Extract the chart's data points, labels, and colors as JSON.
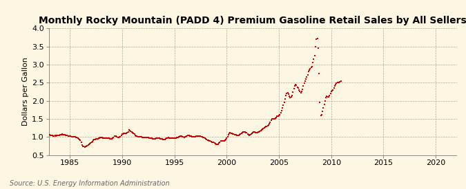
{
  "title": "Monthly Rocky Mountain (PADD 4) Premium Gasoline Retail Sales by All Sellers",
  "ylabel": "Dollars per Gallon",
  "source": "Source: U.S. Energy Information Administration",
  "xlim": [
    1983,
    2022
  ],
  "ylim": [
    0.5,
    4.0
  ],
  "yticks": [
    0.5,
    1.0,
    1.5,
    2.0,
    2.5,
    3.0,
    3.5,
    4.0
  ],
  "xticks": [
    1985,
    1990,
    1995,
    2000,
    2005,
    2010,
    2015,
    2020
  ],
  "dot_color": "#cc0000",
  "bg_color": "#fdf6e3",
  "title_fontsize": 10,
  "label_fontsize": 8,
  "tick_fontsize": 8,
  "source_fontsize": 7,
  "data_points": [
    [
      1983.08,
      1.06
    ],
    [
      1983.17,
      1.04
    ],
    [
      1983.25,
      1.05
    ],
    [
      1983.33,
      1.04
    ],
    [
      1983.42,
      1.03
    ],
    [
      1983.5,
      1.03
    ],
    [
      1983.58,
      1.04
    ],
    [
      1983.67,
      1.03
    ],
    [
      1983.75,
      1.04
    ],
    [
      1983.83,
      1.04
    ],
    [
      1983.92,
      1.05
    ],
    [
      1984.0,
      1.05
    ],
    [
      1984.08,
      1.06
    ],
    [
      1984.17,
      1.06
    ],
    [
      1984.25,
      1.07
    ],
    [
      1984.33,
      1.06
    ],
    [
      1984.42,
      1.06
    ],
    [
      1984.5,
      1.06
    ],
    [
      1984.58,
      1.05
    ],
    [
      1984.67,
      1.04
    ],
    [
      1984.75,
      1.04
    ],
    [
      1984.83,
      1.03
    ],
    [
      1984.92,
      1.02
    ],
    [
      1985.0,
      1.02
    ],
    [
      1985.08,
      1.02
    ],
    [
      1985.17,
      1.01
    ],
    [
      1985.25,
      1.01
    ],
    [
      1985.33,
      1.0
    ],
    [
      1985.42,
      1.0
    ],
    [
      1985.5,
      1.0
    ],
    [
      1985.58,
      0.99
    ],
    [
      1985.67,
      0.98
    ],
    [
      1985.75,
      0.97
    ],
    [
      1985.83,
      0.95
    ],
    [
      1985.92,
      0.93
    ],
    [
      1986.0,
      0.9
    ],
    [
      1986.08,
      0.85
    ],
    [
      1986.17,
      0.78
    ],
    [
      1986.25,
      0.74
    ],
    [
      1986.33,
      0.73
    ],
    [
      1986.42,
      0.72
    ],
    [
      1986.5,
      0.73
    ],
    [
      1986.58,
      0.74
    ],
    [
      1986.67,
      0.76
    ],
    [
      1986.75,
      0.78
    ],
    [
      1986.83,
      0.8
    ],
    [
      1986.92,
      0.82
    ],
    [
      1987.0,
      0.84
    ],
    [
      1987.08,
      0.85
    ],
    [
      1987.17,
      0.87
    ],
    [
      1987.25,
      0.9
    ],
    [
      1987.33,
      0.92
    ],
    [
      1987.42,
      0.93
    ],
    [
      1987.5,
      0.94
    ],
    [
      1987.58,
      0.95
    ],
    [
      1987.67,
      0.95
    ],
    [
      1987.75,
      0.96
    ],
    [
      1987.83,
      0.97
    ],
    [
      1987.92,
      0.98
    ],
    [
      1988.0,
      0.98
    ],
    [
      1988.08,
      0.98
    ],
    [
      1988.17,
      0.97
    ],
    [
      1988.25,
      0.97
    ],
    [
      1988.33,
      0.97
    ],
    [
      1988.42,
      0.97
    ],
    [
      1988.5,
      0.97
    ],
    [
      1988.58,
      0.96
    ],
    [
      1988.67,
      0.96
    ],
    [
      1988.75,
      0.96
    ],
    [
      1988.83,
      0.95
    ],
    [
      1988.92,
      0.94
    ],
    [
      1989.0,
      0.94
    ],
    [
      1989.08,
      0.96
    ],
    [
      1989.17,
      0.99
    ],
    [
      1989.25,
      1.02
    ],
    [
      1989.33,
      1.03
    ],
    [
      1989.42,
      1.02
    ],
    [
      1989.5,
      1.0
    ],
    [
      1989.58,
      0.99
    ],
    [
      1989.67,
      0.99
    ],
    [
      1989.75,
      1.0
    ],
    [
      1989.83,
      1.01
    ],
    [
      1989.92,
      1.04
    ],
    [
      1990.0,
      1.07
    ],
    [
      1990.08,
      1.08
    ],
    [
      1990.17,
      1.09
    ],
    [
      1990.25,
      1.1
    ],
    [
      1990.33,
      1.1
    ],
    [
      1990.42,
      1.1
    ],
    [
      1990.5,
      1.11
    ],
    [
      1990.58,
      1.14
    ],
    [
      1990.67,
      1.2
    ],
    [
      1990.75,
      1.18
    ],
    [
      1990.83,
      1.16
    ],
    [
      1990.92,
      1.14
    ],
    [
      1991.0,
      1.12
    ],
    [
      1991.08,
      1.1
    ],
    [
      1991.17,
      1.07
    ],
    [
      1991.25,
      1.05
    ],
    [
      1991.33,
      1.03
    ],
    [
      1991.42,
      1.02
    ],
    [
      1991.5,
      1.01
    ],
    [
      1991.58,
      1.01
    ],
    [
      1991.67,
      1.0
    ],
    [
      1991.75,
      1.0
    ],
    [
      1991.83,
      1.0
    ],
    [
      1991.92,
      0.99
    ],
    [
      1992.0,
      0.99
    ],
    [
      1992.08,
      0.99
    ],
    [
      1992.17,
      0.98
    ],
    [
      1992.25,
      0.98
    ],
    [
      1992.33,
      0.98
    ],
    [
      1992.42,
      0.98
    ],
    [
      1992.5,
      0.98
    ],
    [
      1992.58,
      0.97
    ],
    [
      1992.67,
      0.96
    ],
    [
      1992.75,
      0.96
    ],
    [
      1992.83,
      0.96
    ],
    [
      1992.92,
      0.95
    ],
    [
      1993.0,
      0.95
    ],
    [
      1993.08,
      0.95
    ],
    [
      1993.17,
      0.95
    ],
    [
      1993.25,
      0.96
    ],
    [
      1993.33,
      0.96
    ],
    [
      1993.42,
      0.97
    ],
    [
      1993.5,
      0.96
    ],
    [
      1993.58,
      0.96
    ],
    [
      1993.67,
      0.95
    ],
    [
      1993.75,
      0.95
    ],
    [
      1993.83,
      0.94
    ],
    [
      1993.92,
      0.93
    ],
    [
      1994.0,
      0.92
    ],
    [
      1994.08,
      0.92
    ],
    [
      1994.17,
      0.94
    ],
    [
      1994.25,
      0.96
    ],
    [
      1994.33,
      0.97
    ],
    [
      1994.42,
      0.98
    ],
    [
      1994.5,
      0.97
    ],
    [
      1994.58,
      0.97
    ],
    [
      1994.67,
      0.97
    ],
    [
      1994.75,
      0.97
    ],
    [
      1994.83,
      0.97
    ],
    [
      1994.92,
      0.97
    ],
    [
      1995.0,
      0.97
    ],
    [
      1995.08,
      0.97
    ],
    [
      1995.17,
      0.97
    ],
    [
      1995.25,
      0.98
    ],
    [
      1995.33,
      0.99
    ],
    [
      1995.42,
      1.0
    ],
    [
      1995.5,
      1.01
    ],
    [
      1995.58,
      1.02
    ],
    [
      1995.67,
      1.02
    ],
    [
      1995.75,
      1.01
    ],
    [
      1995.83,
      1.0
    ],
    [
      1995.92,
      0.99
    ],
    [
      1996.0,
      1.0
    ],
    [
      1996.08,
      1.01
    ],
    [
      1996.17,
      1.02
    ],
    [
      1996.25,
      1.04
    ],
    [
      1996.33,
      1.04
    ],
    [
      1996.42,
      1.04
    ],
    [
      1996.5,
      1.03
    ],
    [
      1996.58,
      1.02
    ],
    [
      1996.67,
      1.01
    ],
    [
      1996.75,
      1.01
    ],
    [
      1996.83,
      1.01
    ],
    [
      1996.92,
      1.01
    ],
    [
      1997.0,
      1.01
    ],
    [
      1997.08,
      1.02
    ],
    [
      1997.17,
      1.02
    ],
    [
      1997.25,
      1.03
    ],
    [
      1997.33,
      1.03
    ],
    [
      1997.42,
      1.03
    ],
    [
      1997.5,
      1.02
    ],
    [
      1997.58,
      1.01
    ],
    [
      1997.67,
      1.0
    ],
    [
      1997.75,
      0.99
    ],
    [
      1997.83,
      0.98
    ],
    [
      1997.92,
      0.96
    ],
    [
      1998.0,
      0.94
    ],
    [
      1998.08,
      0.92
    ],
    [
      1998.17,
      0.91
    ],
    [
      1998.25,
      0.9
    ],
    [
      1998.33,
      0.89
    ],
    [
      1998.42,
      0.88
    ],
    [
      1998.5,
      0.87
    ],
    [
      1998.58,
      0.86
    ],
    [
      1998.67,
      0.86
    ],
    [
      1998.75,
      0.85
    ],
    [
      1998.83,
      0.84
    ],
    [
      1998.92,
      0.82
    ],
    [
      1999.0,
      0.8
    ],
    [
      1999.08,
      0.79
    ],
    [
      1999.17,
      0.8
    ],
    [
      1999.25,
      0.83
    ],
    [
      1999.33,
      0.86
    ],
    [
      1999.42,
      0.88
    ],
    [
      1999.5,
      0.88
    ],
    [
      1999.58,
      0.88
    ],
    [
      1999.67,
      0.88
    ],
    [
      1999.75,
      0.89
    ],
    [
      1999.83,
      0.9
    ],
    [
      1999.92,
      0.93
    ],
    [
      2000.0,
      0.96
    ],
    [
      2000.08,
      1.0
    ],
    [
      2000.17,
      1.06
    ],
    [
      2000.25,
      1.1
    ],
    [
      2000.33,
      1.11
    ],
    [
      2000.42,
      1.1
    ],
    [
      2000.5,
      1.09
    ],
    [
      2000.58,
      1.07
    ],
    [
      2000.67,
      1.07
    ],
    [
      2000.75,
      1.06
    ],
    [
      2000.83,
      1.06
    ],
    [
      2000.92,
      1.06
    ],
    [
      2001.0,
      1.05
    ],
    [
      2001.08,
      1.04
    ],
    [
      2001.17,
      1.04
    ],
    [
      2001.25,
      1.06
    ],
    [
      2001.33,
      1.08
    ],
    [
      2001.42,
      1.1
    ],
    [
      2001.5,
      1.12
    ],
    [
      2001.58,
      1.13
    ],
    [
      2001.67,
      1.13
    ],
    [
      2001.75,
      1.13
    ],
    [
      2001.83,
      1.12
    ],
    [
      2001.92,
      1.11
    ],
    [
      2002.0,
      1.08
    ],
    [
      2002.08,
      1.06
    ],
    [
      2002.17,
      1.05
    ],
    [
      2002.25,
      1.06
    ],
    [
      2002.33,
      1.08
    ],
    [
      2002.42,
      1.1
    ],
    [
      2002.5,
      1.12
    ],
    [
      2002.58,
      1.13
    ],
    [
      2002.67,
      1.13
    ],
    [
      2002.75,
      1.12
    ],
    [
      2002.83,
      1.12
    ],
    [
      2002.92,
      1.12
    ],
    [
      2003.0,
      1.13
    ],
    [
      2003.08,
      1.14
    ],
    [
      2003.17,
      1.16
    ],
    [
      2003.25,
      1.18
    ],
    [
      2003.33,
      1.19
    ],
    [
      2003.42,
      1.21
    ],
    [
      2003.5,
      1.23
    ],
    [
      2003.58,
      1.25
    ],
    [
      2003.67,
      1.26
    ],
    [
      2003.75,
      1.28
    ],
    [
      2003.83,
      1.29
    ],
    [
      2003.92,
      1.3
    ],
    [
      2004.0,
      1.33
    ],
    [
      2004.08,
      1.36
    ],
    [
      2004.17,
      1.4
    ],
    [
      2004.25,
      1.46
    ],
    [
      2004.33,
      1.5
    ],
    [
      2004.42,
      1.5
    ],
    [
      2004.5,
      1.49
    ],
    [
      2004.58,
      1.49
    ],
    [
      2004.67,
      1.51
    ],
    [
      2004.75,
      1.54
    ],
    [
      2004.83,
      1.57
    ],
    [
      2004.92,
      1.58
    ],
    [
      2005.0,
      1.6
    ],
    [
      2005.08,
      1.62
    ],
    [
      2005.17,
      1.66
    ],
    [
      2005.25,
      1.73
    ],
    [
      2005.33,
      1.8
    ],
    [
      2005.42,
      1.87
    ],
    [
      2005.5,
      1.95
    ],
    [
      2005.58,
      2.05
    ],
    [
      2005.67,
      2.15
    ],
    [
      2005.75,
      2.2
    ],
    [
      2005.83,
      2.22
    ],
    [
      2005.92,
      2.18
    ],
    [
      2006.0,
      2.12
    ],
    [
      2006.08,
      2.08
    ],
    [
      2006.17,
      2.1
    ],
    [
      2006.25,
      2.15
    ],
    [
      2006.33,
      2.23
    ],
    [
      2006.42,
      2.33
    ],
    [
      2006.5,
      2.4
    ],
    [
      2006.58,
      2.45
    ],
    [
      2006.67,
      2.42
    ],
    [
      2006.75,
      2.38
    ],
    [
      2006.83,
      2.35
    ],
    [
      2006.92,
      2.3
    ],
    [
      2007.0,
      2.25
    ],
    [
      2007.08,
      2.22
    ],
    [
      2007.17,
      2.25
    ],
    [
      2007.25,
      2.32
    ],
    [
      2007.33,
      2.4
    ],
    [
      2007.42,
      2.48
    ],
    [
      2007.5,
      2.55
    ],
    [
      2007.58,
      2.6
    ],
    [
      2007.67,
      2.65
    ],
    [
      2007.75,
      2.72
    ],
    [
      2007.83,
      2.8
    ],
    [
      2007.92,
      2.85
    ],
    [
      2008.0,
      2.88
    ],
    [
      2008.08,
      2.92
    ],
    [
      2008.17,
      2.95
    ],
    [
      2008.25,
      3.05
    ],
    [
      2008.33,
      3.15
    ],
    [
      2008.42,
      3.25
    ],
    [
      2008.5,
      3.5
    ],
    [
      2008.58,
      3.7
    ],
    [
      2008.67,
      3.72
    ],
    [
      2008.75,
      3.45
    ],
    [
      2008.83,
      2.75
    ],
    [
      2008.92,
      1.95
    ],
    [
      2009.0,
      1.6
    ],
    [
      2009.08,
      1.62
    ],
    [
      2009.17,
      1.7
    ],
    [
      2009.25,
      1.8
    ],
    [
      2009.33,
      1.9
    ],
    [
      2009.42,
      2.0
    ],
    [
      2009.5,
      2.08
    ],
    [
      2009.58,
      2.12
    ],
    [
      2009.67,
      2.1
    ],
    [
      2009.75,
      2.1
    ],
    [
      2009.83,
      2.15
    ],
    [
      2009.92,
      2.2
    ],
    [
      2010.0,
      2.25
    ],
    [
      2010.08,
      2.28
    ],
    [
      2010.17,
      2.3
    ],
    [
      2010.25,
      2.35
    ],
    [
      2010.33,
      2.4
    ],
    [
      2010.42,
      2.45
    ],
    [
      2010.5,
      2.48
    ],
    [
      2010.58,
      2.5
    ],
    [
      2010.67,
      2.5
    ],
    [
      2010.75,
      2.5
    ],
    [
      2010.83,
      2.52
    ],
    [
      2010.92,
      2.55
    ]
  ]
}
